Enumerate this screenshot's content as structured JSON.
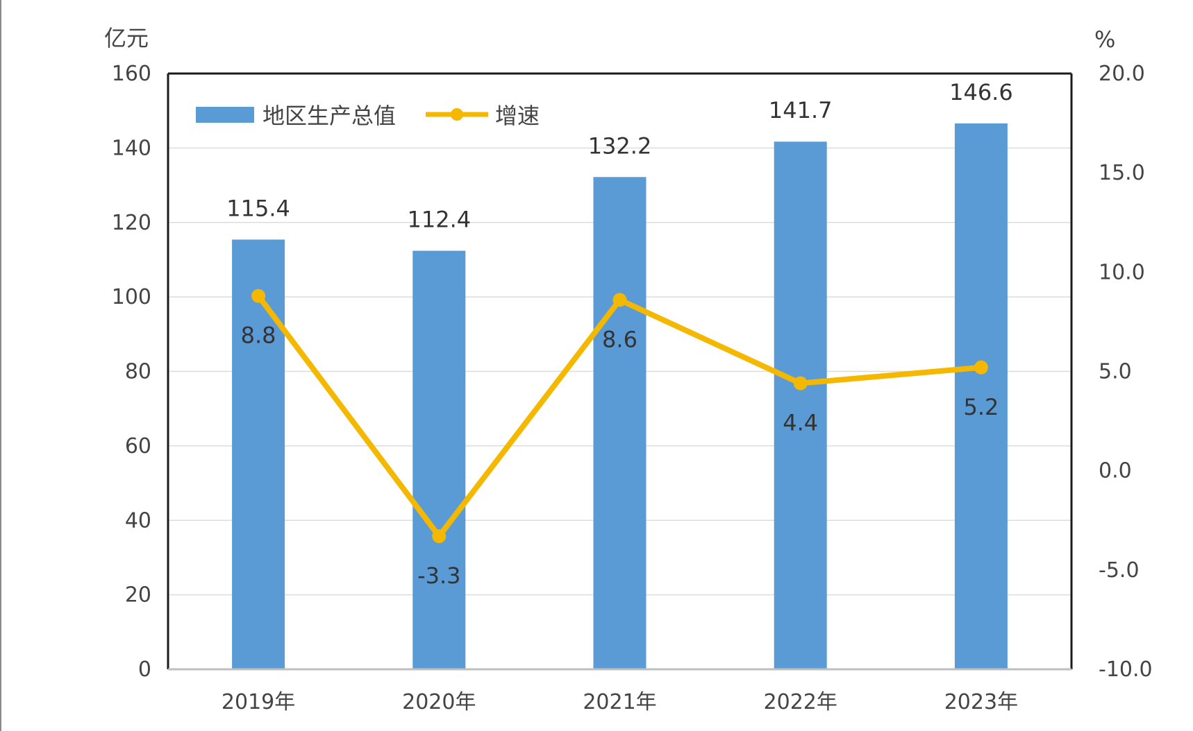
{
  "chart_data": {
    "type": "bar",
    "categories": [
      "2019年",
      "2020年",
      "2021年",
      "2022年",
      "2023年"
    ],
    "series": [
      {
        "name": "地区生产总值",
        "type": "bar",
        "axis": "left",
        "values": [
          115.4,
          112.4,
          132.2,
          141.7,
          146.6
        ],
        "color": "#5b9bd5"
      },
      {
        "name": "增速",
        "type": "line",
        "axis": "right",
        "values": [
          8.8,
          -3.3,
          8.6,
          4.4,
          5.2
        ],
        "color": "#f5b800"
      }
    ],
    "y_left": {
      "unit": "亿元",
      "range": [
        0,
        160
      ],
      "ticks": [
        "0",
        "20",
        "40",
        "60",
        "80",
        "100",
        "120",
        "140",
        "160"
      ]
    },
    "y_right": {
      "unit": "%",
      "range": [
        -10,
        20
      ],
      "ticks": [
        "-10.0",
        "-5.0",
        "0.0",
        "5.0",
        "10.0",
        "15.0",
        "20.0"
      ]
    },
    "bar_labels": [
      "115.4",
      "112.4",
      "132.2",
      "141.7",
      "146.6"
    ],
    "line_labels": [
      "8.8",
      "-3.3",
      "8.6",
      "4.4",
      "5.2"
    ],
    "legend": {
      "position": "top-left",
      "entries": [
        "地区生产总值",
        "增速"
      ]
    },
    "grid": true
  }
}
